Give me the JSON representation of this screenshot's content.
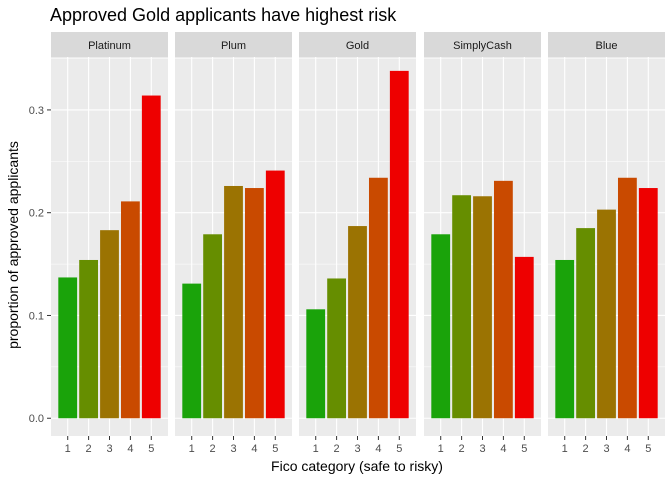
{
  "chart_data": {
    "type": "bar",
    "title": "Approved Gold applicants have highest risk",
    "xlabel": "Fico category (safe to risky)",
    "ylabel": "proportion of approved applicants",
    "ylim": [
      0.0,
      0.35
    ],
    "yticks": [
      "0.0",
      "0.1",
      "0.2",
      "0.3"
    ],
    "ytick_values": [
      0.0,
      0.1,
      0.2,
      0.3
    ],
    "categories": [
      "1",
      "2",
      "3",
      "4",
      "5"
    ],
    "category_colors": [
      "#1aa30a",
      "#668e00",
      "#9b7302",
      "#c94a00",
      "#ee0000"
    ],
    "panel_background": "#ebebeb",
    "strip_background": "#d9d9d9",
    "grid": true,
    "legend": "none",
    "facets": [
      {
        "name": "Platinum",
        "values": [
          0.137,
          0.154,
          0.183,
          0.211,
          0.314
        ]
      },
      {
        "name": "Plum",
        "values": [
          0.131,
          0.179,
          0.226,
          0.224,
          0.241
        ]
      },
      {
        "name": "Gold",
        "values": [
          0.106,
          0.136,
          0.187,
          0.234,
          0.338
        ]
      },
      {
        "name": "SimplyCash",
        "values": [
          0.179,
          0.217,
          0.216,
          0.231,
          0.157
        ]
      },
      {
        "name": "Blue",
        "values": [
          0.154,
          0.185,
          0.203,
          0.234,
          0.224
        ]
      }
    ]
  }
}
